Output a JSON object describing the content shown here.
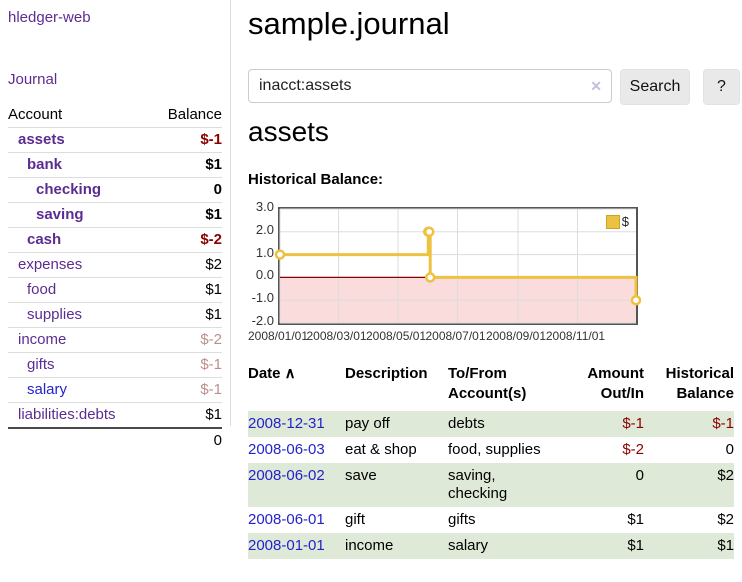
{
  "app": {
    "title": "hledger-web"
  },
  "sidebar": {
    "journal_label": "Journal",
    "accounts": {
      "account_header": "Account",
      "balance_header": "Balance",
      "rows": [
        {
          "account": "assets",
          "level": 0,
          "bold": true,
          "link_style": "purple",
          "balance": "$-1",
          "balance_style": "neg"
        },
        {
          "account": "bank",
          "level": 1,
          "bold": true,
          "link_style": "purple",
          "balance": "$1",
          "balance_style": "pos"
        },
        {
          "account": "checking",
          "level": 2,
          "bold": true,
          "link_style": "purple",
          "balance": "0",
          "balance_style": "pos"
        },
        {
          "account": "saving",
          "level": 2,
          "bold": true,
          "link_style": "purple",
          "balance": "$1",
          "balance_style": "pos"
        },
        {
          "account": "cash",
          "level": 1,
          "bold": true,
          "link_style": "purple",
          "balance": "$-2",
          "balance_style": "neg"
        },
        {
          "account": "expenses",
          "level": 0,
          "bold": false,
          "link_style": "purple",
          "balance": "$2",
          "balance_style": "pos"
        },
        {
          "account": "food",
          "level": 1,
          "bold": false,
          "link_style": "purple",
          "balance": "$1",
          "balance_style": "pos"
        },
        {
          "account": "supplies",
          "level": 1,
          "bold": false,
          "link_style": "purple",
          "balance": "$1",
          "balance_style": "pos"
        },
        {
          "account": "income",
          "level": 0,
          "bold": false,
          "link_style": "purple",
          "balance": "$-2",
          "balance_style": "neg-faint"
        },
        {
          "account": "gifts",
          "level": 1,
          "bold": false,
          "link_style": "purple",
          "balance": "$-1",
          "balance_style": "neg-faint"
        },
        {
          "account": "salary",
          "level": 1,
          "bold": false,
          "link_style": "blue",
          "balance": "$-1",
          "balance_style": "neg-faint"
        },
        {
          "account": "liabilities:debts",
          "level": 0,
          "bold": false,
          "link_style": "purple",
          "balance": "$1",
          "balance_style": "pos"
        }
      ],
      "total": "0"
    }
  },
  "header": {
    "title": "sample.journal"
  },
  "search": {
    "value": "inacct:assets",
    "clear_icon": "✕",
    "button_label": "Search",
    "help_label": "?"
  },
  "account_page": {
    "heading": "assets",
    "chart_label": "Historical Balance:"
  },
  "chart_data": {
    "type": "line",
    "style": "step",
    "title": "Historical Balance",
    "series": [
      {
        "name": "$",
        "color": "#edc240",
        "points": [
          [
            "2008-01-01",
            1
          ],
          [
            "2008-06-01",
            2
          ],
          [
            "2008-06-02",
            2
          ],
          [
            "2008-06-03",
            0
          ],
          [
            "2008-12-31",
            -1
          ]
        ]
      }
    ],
    "x_range": [
      "2008-01-01",
      "2008-12-31"
    ],
    "x_ticks": [
      "2008/01/01",
      "2008/03/01",
      "2008/05/01",
      "2008/07/01",
      "2008/09/01",
      "2008/11/01"
    ],
    "y_ticks": [
      "3.0",
      "2.0",
      "1.0",
      "0.0",
      "-1.0",
      "-2.0"
    ],
    "ylim": [
      -2,
      3
    ],
    "grid": true,
    "legend": {
      "label": "$",
      "position": "top-right"
    },
    "negative_region_color": "#fbdcdc",
    "zero_line_color": "#8b0000"
  },
  "register": {
    "sort_icon": "∧",
    "columns": [
      "Date",
      "Description",
      "To/From Account(s)",
      "Amount Out/In",
      "Historical Balance"
    ],
    "rows": [
      {
        "date": "2008-12-31",
        "description": "pay off",
        "accounts": "debts",
        "amount": "$-1",
        "amount_style": "neg",
        "balance": "$-1",
        "balance_style": "neg",
        "shaded": true
      },
      {
        "date": "2008-06-03",
        "description": "eat & shop",
        "accounts": "food, supplies",
        "amount": "$-2",
        "amount_style": "neg",
        "balance": "0",
        "balance_style": "pos",
        "shaded": false
      },
      {
        "date": "2008-06-02",
        "description": "save",
        "accounts": "saving,\nchecking",
        "amount": "0",
        "amount_style": "pos",
        "balance": "$2",
        "balance_style": "pos",
        "shaded": true
      },
      {
        "date": "2008-06-01",
        "description": "gift",
        "accounts": "gifts",
        "amount": "$1",
        "amount_style": "pos",
        "balance": "$2",
        "balance_style": "pos",
        "shaded": false
      },
      {
        "date": "2008-01-01",
        "description": "income",
        "accounts": "salary",
        "amount": "$1",
        "amount_style": "pos",
        "balance": "$1",
        "balance_style": "pos",
        "shaded": true
      }
    ]
  },
  "colors": {
    "link_purple": "#5c2d91",
    "link_blue": "#2323cc",
    "negative_strong": "#8b0000",
    "negative_faint": "#bc8f8f",
    "row_green": "#dfe9d8",
    "chart_line": "#edc240",
    "chart_negative_bg": "#fbdcdc",
    "chart_zero_line": "#8b0000",
    "chart_border": "#555555"
  }
}
